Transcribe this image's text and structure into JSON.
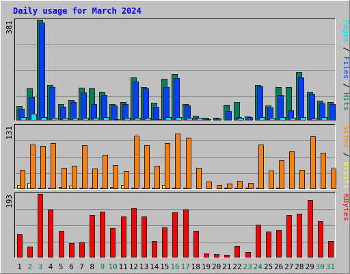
{
  "colors": {
    "background": "#c0c0c0",
    "panel": "#c0c0c0",
    "grid": "#808080",
    "title": "#0000ff",
    "hits": "#00805c",
    "files": "#0040ff",
    "pages": "#00e0ff",
    "visits": "#ffff00",
    "sites": "#ff8000",
    "kbytes": "#ff0000",
    "weekday_label": "#000000",
    "weekend_label": "#008040",
    "axis_label": "#000000"
  },
  "chart_data": {
    "type": "bar",
    "title": "Daily usage for March 2024",
    "days": [
      "1",
      "2",
      "3",
      "4",
      "5",
      "6",
      "7",
      "8",
      "9",
      "10",
      "11",
      "12",
      "13",
      "14",
      "15",
      "16",
      "17",
      "18",
      "19",
      "20",
      "21",
      "22",
      "23",
      "24",
      "25",
      "26",
      "27",
      "28",
      "29",
      "30",
      "31"
    ],
    "weekend_days": [
      "2",
      "3",
      "9",
      "10",
      "16",
      "17",
      "23",
      "24",
      "30",
      "31"
    ],
    "panels": [
      {
        "id": "top",
        "ymax_label": "381",
        "ymax": 381,
        "right_label_parts": [
          {
            "text": "Pages",
            "color_key": "pages"
          },
          {
            "text": " / ",
            "color_key": "axis_label"
          },
          {
            "text": "Files",
            "color_key": "files"
          },
          {
            "text": " / ",
            "color_key": "axis_label"
          },
          {
            "text": "Hits",
            "color_key": "hits"
          }
        ],
        "series": [
          {
            "name": "Hits",
            "color_key": "hits",
            "values": [
              55,
              122,
              381,
              135,
              62,
              78,
              125,
              123,
              108,
              62,
              70,
              162,
              128,
              68,
              157,
              176,
              62,
              19,
              10,
              10,
              60,
              70,
              16,
              135,
              58,
              128,
              128,
              183,
              108,
              75,
              69
            ]
          },
          {
            "name": "Files",
            "color_key": "files",
            "values": [
              45,
              87,
              370,
              127,
              51,
              70,
              106,
              62,
              96,
              56,
              61,
              147,
              123,
              52,
              128,
              160,
              56,
              11,
              6,
              7,
              37,
              14,
              12,
              129,
              48,
              95,
              39,
              164,
              102,
              65,
              63
            ]
          },
          {
            "name": "Pages",
            "color_key": "pages",
            "values": [
              12,
              26,
              12,
              11,
              11,
              10,
              10,
              11,
              13,
              6,
              11,
              10,
              11,
              6,
              12,
              12,
              10,
              11,
              2,
              2,
              1,
              10,
              3,
              12,
              10,
              12,
              10,
              12,
              9,
              13,
              1
            ]
          }
        ]
      },
      {
        "id": "middle",
        "ymax_label": "131",
        "ymax": 131,
        "right_label_parts": [
          {
            "text": "Sites",
            "color_key": "sites"
          },
          {
            "text": " / ",
            "color_key": "axis_label"
          },
          {
            "text": "Visits",
            "color_key": "visits"
          }
        ],
        "series": [
          {
            "name": "Visits",
            "color_key": "visits",
            "values": [
              8,
              13,
              3,
              3,
              4,
              7,
              3,
              3,
              3,
              4,
              8,
              3,
              3,
              3,
              8,
              3,
              3,
              2,
              2,
              1,
              3,
              3,
              3,
              3,
              2,
              3,
              2,
              2,
              2,
              2,
              2
            ]
          },
          {
            "name": "Sites",
            "color_key": "sites",
            "values": [
              39,
              92,
              89,
              95,
              44,
              48,
              90,
              42,
              70,
              50,
              37,
              110,
              90,
              48,
              95,
              114,
              106,
              43,
              16,
              9,
              11,
              17,
              13,
              92,
              38,
              59,
              77,
              39,
              109,
              75,
              42
            ]
          }
        ]
      },
      {
        "id": "bottom",
        "ymax_label": "193",
        "ymax": 193,
        "right_label_parts": [
          {
            "text": "KBytes",
            "color_key": "kbytes"
          }
        ],
        "series": [
          {
            "name": "KBytes",
            "color_key": "kbytes",
            "values": [
              71,
              34,
              193,
              145,
              81,
              44,
              45,
              128,
              140,
              89,
              124,
              150,
              125,
              49,
              92,
              137,
              145,
              81,
              12,
              10,
              8,
              35,
              17,
              99,
              79,
              84,
              128,
              133,
              175,
              110,
              50
            ]
          }
        ]
      }
    ]
  }
}
